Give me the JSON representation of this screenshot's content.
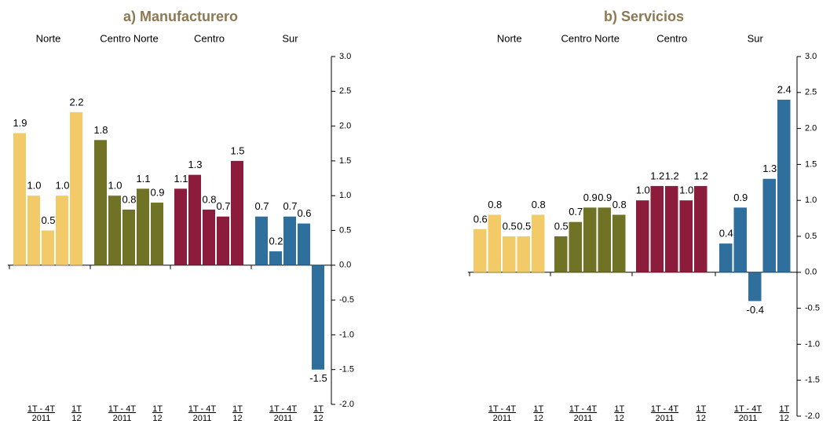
{
  "chart_data": [
    {
      "type": "bar",
      "title": "a) Manufacturero",
      "ylim": [
        -2,
        3
      ],
      "yticks": [
        {
          "value": 3,
          "label": "3.0"
        },
        {
          "value": 2.5,
          "label": "2.5"
        },
        {
          "value": 2,
          "label": "2.0"
        },
        {
          "value": 1.5,
          "label": "1.5"
        },
        {
          "value": 1,
          "label": "1.0"
        },
        {
          "value": 0.5,
          "label": "0.5"
        },
        {
          "value": 0,
          "label": "0.0"
        },
        {
          "value": -0.5,
          "label": "-0.5"
        },
        {
          "value": -1,
          "label": "-1.0"
        },
        {
          "value": -1.5,
          "label": "-1.5"
        },
        {
          "value": -2,
          "label": "-2.0"
        }
      ],
      "period_labels": [
        {
          "label": "1T - 4T",
          "sub": "2011"
        },
        {
          "label": "1T",
          "sub": "12"
        }
      ],
      "series": [
        {
          "name": "Norte",
          "color": "#f2ca68",
          "values": [
            1.9,
            1.0,
            0.5,
            1.0,
            2.2
          ],
          "value_labels": [
            "1.9",
            "1.0",
            "0.5",
            "1.0",
            "2.2"
          ]
        },
        {
          "name": "Centro Norte",
          "color": "#707326",
          "values": [
            1.8,
            1.0,
            0.8,
            1.1,
            0.9
          ],
          "value_labels": [
            "1.8",
            "1.0",
            "0.8",
            "1.1",
            "0.9"
          ]
        },
        {
          "name": "Centro",
          "color": "#8c1c3c",
          "values": [
            1.1,
            1.3,
            0.8,
            0.7,
            1.5
          ],
          "value_labels": [
            "1.1",
            "1.3",
            "0.8",
            "0.7",
            "1.5"
          ]
        },
        {
          "name": "Sur",
          "color": "#2e6f9e",
          "values": [
            0.7,
            0.2,
            0.7,
            0.6,
            -1.5
          ],
          "value_labels": [
            "0.7",
            "0.2",
            "0.7",
            "0.6",
            "-1.5"
          ]
        }
      ]
    },
    {
      "type": "bar",
      "title": "b) Servicios",
      "ylim": [
        -2,
        3
      ],
      "yticks": [
        {
          "value": 3,
          "label": "3.0"
        },
        {
          "value": 2.5,
          "label": "2.5"
        },
        {
          "value": 2,
          "label": "2.0"
        },
        {
          "value": 1.5,
          "label": "1.5"
        },
        {
          "value": 1,
          "label": "1.0"
        },
        {
          "value": 0.5,
          "label": "0.5"
        },
        {
          "value": 0,
          "label": "0.0"
        },
        {
          "value": -0.5,
          "label": "-0.5"
        },
        {
          "value": -1,
          "label": "-1.0"
        },
        {
          "value": -1.5,
          "label": "-1.5"
        },
        {
          "value": -2,
          "label": "-2.0"
        }
      ],
      "period_labels": [
        {
          "label": "1T - 4T",
          "sub": "2011"
        },
        {
          "label": "1T",
          "sub": "12"
        }
      ],
      "series": [
        {
          "name": "Norte",
          "color": "#f2ca68",
          "values": [
            0.6,
            0.8,
            0.5,
            0.5,
            0.8
          ],
          "value_labels": [
            "0.6",
            "0.8",
            "0.5",
            "0.5",
            "0.8"
          ]
        },
        {
          "name": "Centro Norte",
          "color": "#707326",
          "values": [
            0.5,
            0.7,
            0.9,
            0.9,
            0.8
          ],
          "value_labels": [
            "0.5",
            "0.7",
            "0.9",
            "0.9",
            "0.8"
          ]
        },
        {
          "name": "Centro",
          "color": "#8c1c3c",
          "values": [
            1.0,
            1.2,
            1.2,
            1.0,
            1.2
          ],
          "value_labels": [
            "1.0",
            "1.2",
            "1.2",
            "1.0",
            "1.2"
          ]
        },
        {
          "name": "Sur",
          "color": "#2e6f9e",
          "values": [
            0.4,
            0.9,
            -0.4,
            1.3,
            2.4
          ],
          "value_labels": [
            "0.4",
            "0.9",
            "-0.4",
            "1.3",
            "2.4"
          ]
        }
      ]
    }
  ]
}
